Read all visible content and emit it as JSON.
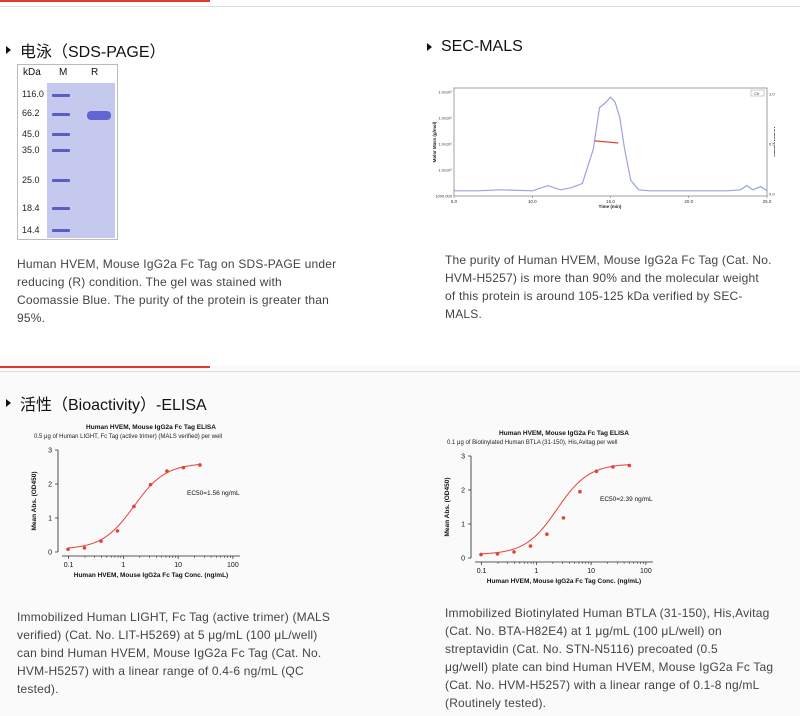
{
  "sds": {
    "heading": "电泳（SDS-PAGE）",
    "gel": {
      "header_kda": "kDa",
      "header_m": "M",
      "header_r": "R",
      "markers": [
        "116.0",
        "66.2",
        "45.0",
        "35.0",
        "25.0",
        "18.4",
        "14.4"
      ]
    },
    "caption_lines": [
      "Human HVEM, Mouse IgG2a Fc Tag on SDS-PAGE under",
      "reducing (R) condition. The gel was stained with",
      "Coomassie Blue. The purity of the protein is greater than",
      "95%."
    ]
  },
  "sec": {
    "heading": "SEC-MALS",
    "caption_lines": [
      "The purity of Human HVEM, Mouse IgG2a Fc Tag (Cat. No.",
      "HVM-H5257) is more than 90% and the molecular weight",
      "of this protein is around 105-125 kDa verified by SEC-",
      "MALS."
    ]
  },
  "bio": {
    "heading": "活性（Bioactivity）-ELISA",
    "caption1_lines": [
      "Immobilized Human LIGHT, Fc Tag (active trimer) (MALS",
      "verified) (Cat. No. LIT-H5269) at 5 μg/mL (100 μL/well)",
      "can bind Human HVEM, Mouse IgG2a Fc Tag (Cat. No.",
      "HVM-H5257) with a linear range of 0.4-6 ng/mL (QC",
      "tested)."
    ],
    "caption2_lines": [
      "Immobilized Biotinylated Human BTLA (31-150), His,Avitag",
      "(Cat. No. BTA-H82E4) at 1 μg/mL (100 μL/well) on",
      "streptavidin (Cat. No. STN-N5116) precoated (0.5",
      "μg/well) plate can bind Human HVEM, Mouse IgG2a Fc Tag",
      "(Cat. No. HVM-H5257) with a linear range of 0.1-8 ng/mL",
      "(Routinely tested)."
    ]
  },
  "colors": {
    "accent": "#e03a2e",
    "curve": "#e2423a",
    "sec_trace": "#9aa3e0",
    "gel": "#c5c9ee",
    "band": "#5a5dc4"
  },
  "chart_data": [
    {
      "type": "line",
      "title": "",
      "xlabel": "Time (min)",
      "ylabel": "Molar Mass (g/mol)",
      "y2label": "Relative Scale",
      "x_ticks": [
        "5.0",
        "10.0",
        "15.0",
        "20.0",
        "25.0"
      ],
      "y_ticks": [
        "1000.000",
        "1.0x10⁵",
        "1.0x10⁵",
        "1.0x10⁵",
        "1.0x10⁶"
      ],
      "y2_ticks": [
        "0.0",
        "0.5",
        "1.0"
      ],
      "legend": [
        "Ch"
      ],
      "xlim": [
        5,
        25
      ],
      "series": [
        {
          "x": [
            5.0,
            6.5,
            8.0,
            10.0,
            11.0,
            11.8,
            12.5,
            13.2,
            13.9,
            14.3,
            14.7,
            15.0,
            15.3,
            15.6,
            15.9,
            16.3,
            16.8,
            17.5,
            19.0,
            21.0,
            22.5,
            23.3,
            23.7,
            24.1,
            24.6,
            25.0
          ],
          "y": [
            0.05,
            0.05,
            0.06,
            0.05,
            0.1,
            0.06,
            0.08,
            0.12,
            0.45,
            0.85,
            0.9,
            0.95,
            0.9,
            0.75,
            0.45,
            0.15,
            0.06,
            0.05,
            0.05,
            0.05,
            0.05,
            0.06,
            0.1,
            0.06,
            0.09,
            0.05
          ]
        },
        {
          "x": [
            14.0,
            15.5
          ],
          "y": [
            0.53,
            0.51
          ]
        }
      ]
    },
    {
      "type": "scatter",
      "title": "Human HVEM, Mouse IgG2a Fc Tag ELISA",
      "subtitle": "0.5 μg of Human LIGHT, Fc Tag (active trimer) (MALS verified) per well",
      "xlabel": "Human HVEM, Mouse IgG2a Fc Tag Conc. (ng/mL)",
      "ylabel": "Mean Abs. (OD450)",
      "annotation": "EC50=1.56 ng/mL",
      "x_ticks": [
        "0.1",
        "1",
        "10",
        "100"
      ],
      "y_ticks": [
        "0",
        "1",
        "2",
        "3"
      ],
      "ylim": [
        0,
        3
      ],
      "xlim": [
        0.1,
        100
      ],
      "x": [
        0.0977,
        0.195,
        0.391,
        0.781,
        1.56,
        3.125,
        6.25,
        12.5,
        25
      ],
      "y": [
        0.08,
        0.12,
        0.32,
        0.62,
        1.34,
        1.98,
        2.38,
        2.48,
        2.56
      ],
      "ec50": 1.56
    },
    {
      "type": "scatter",
      "title": "Human HVEM, Mouse IgG2a Fc Tag ELISA",
      "subtitle": "0.1 μg of Biotinylated Human BTLA (31-150), His,Avitag per well",
      "xlabel": "Human HVEM, Mouse IgG2a Fc Tag Conc. (ng/mL)",
      "ylabel": "Mean Abs. (OD450)",
      "annotation": "EC50=2.39 ng/mL",
      "x_ticks": [
        "0.1",
        "1",
        "10",
        "100"
      ],
      "y_ticks": [
        "0",
        "1",
        "2",
        "3"
      ],
      "ylim": [
        0,
        3
      ],
      "xlim": [
        0.1,
        100
      ],
      "x": [
        0.0977,
        0.195,
        0.391,
        0.781,
        1.56,
        3.125,
        6.25,
        12.5,
        25,
        50
      ],
      "y": [
        0.1,
        0.12,
        0.18,
        0.35,
        0.7,
        1.18,
        1.95,
        2.55,
        2.68,
        2.72
      ],
      "ec50": 2.39
    }
  ]
}
